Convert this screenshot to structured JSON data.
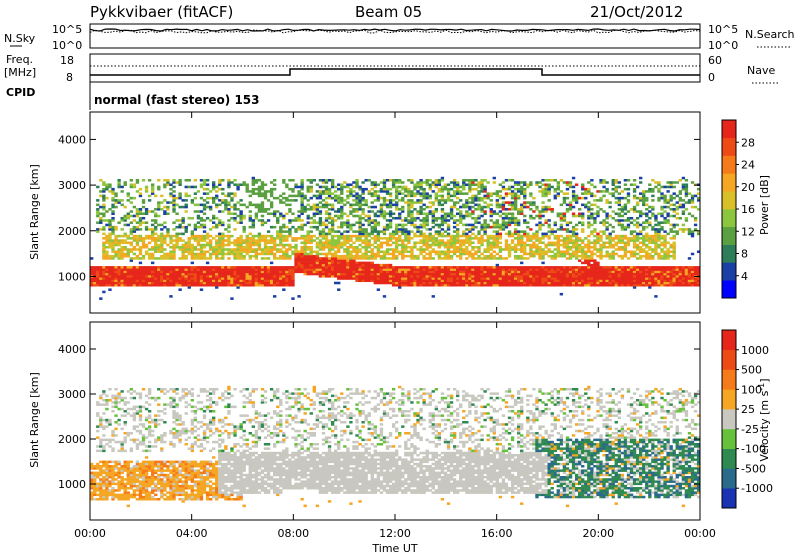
{
  "header": {
    "station": "Pykkvibaer (fitACF)",
    "beam": "Beam 05",
    "date": "21/Oct/2012"
  },
  "nsky_panel": {
    "left_label": "N.Sky",
    "left_ticks": [
      "10^5",
      "10^0"
    ],
    "right_label": "N.Search",
    "right_ticks": [
      "10^5",
      "10^0"
    ]
  },
  "freq_panel": {
    "left_label_1": "Freq.",
    "left_label_2": "[MHz]",
    "left_ticks": [
      "18",
      "8"
    ],
    "right_label": "Nave",
    "right_ticks": [
      "60",
      "0"
    ]
  },
  "cpid_panel": {
    "label": "CPID",
    "text": "normal (fast stereo) 153"
  },
  "chart_data": [
    {
      "type": "heatmap",
      "name": "power-panel",
      "ylabel": "Slant Range [km]",
      "y_ticks": [
        "1000",
        "2000",
        "3000",
        "4000"
      ],
      "y_tick_values": [
        1000,
        2000,
        3000,
        4000
      ],
      "ylim": [
        200,
        4600
      ],
      "xlim_hours": [
        0,
        24
      ],
      "colorbar": {
        "label": "Power [dB]",
        "ticks": [
          "28",
          "24",
          "20",
          "16",
          "12",
          "8",
          "4"
        ],
        "colors": [
          "#0000ff",
          "#1a3fa5",
          "#2e7d5a",
          "#5aa040",
          "#8cc63f",
          "#d9c028",
          "#f5a623",
          "#f57a1a",
          "#ee4a16",
          "#e6261a"
        ]
      }
    },
    {
      "type": "heatmap",
      "name": "velocity-panel",
      "ylabel": "Slant Range [km]",
      "y_ticks": [
        "1000",
        "2000",
        "3000",
        "4000"
      ],
      "y_tick_values": [
        1000,
        2000,
        3000,
        4000
      ],
      "ylim": [
        200,
        4600
      ],
      "xlim_hours": [
        0,
        24
      ],
      "colorbar": {
        "label": "Velocity [m s",
        "label_sup": "-1",
        "label_close": "]",
        "ticks": [
          "1000",
          "500",
          "100",
          "25",
          "-25",
          "-100",
          "-500",
          "-1000"
        ],
        "colors": [
          "#1a33b3",
          "#2a6a8a",
          "#2e8a50",
          "#66c23a",
          "#c8c8c0",
          "#f5a623",
          "#f57a1a",
          "#ee4a16",
          "#e6261a"
        ]
      }
    }
  ],
  "x_axis": {
    "ticks": [
      "00:00",
      "04:00",
      "08:00",
      "12:00",
      "16:00",
      "20:00",
      "00:00"
    ],
    "label": "Time UT"
  },
  "colors": {
    "gs": "#c8c8c0",
    "power_main": "#e8341a",
    "power_orange": "#f59a23"
  }
}
